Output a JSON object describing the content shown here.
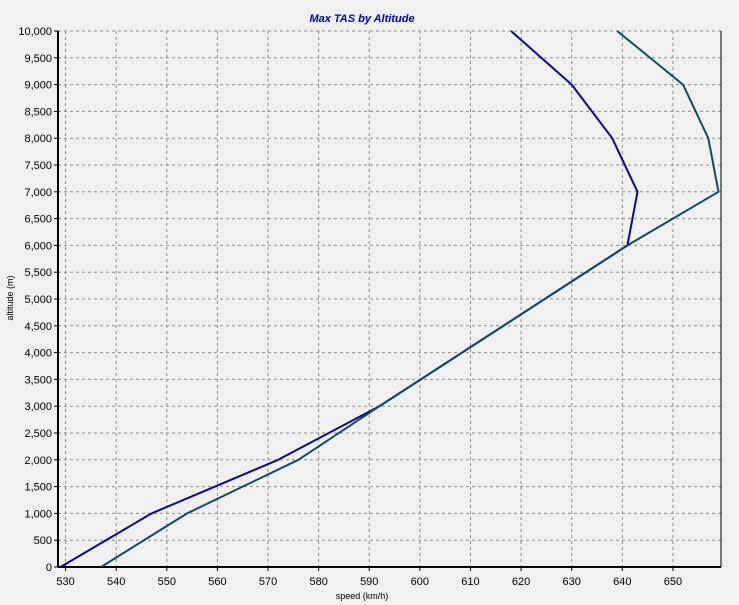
{
  "chart_data": {
    "type": "line",
    "title": "Max TAS by Altitude",
    "title_color": "#0000cc",
    "xlabel": "speed (km/h)",
    "ylabel": "altitude (m)",
    "xlim": [
      528.5,
      659.5
    ],
    "ylim": [
      0,
      10000
    ],
    "x_ticks": [
      530,
      540,
      550,
      560,
      570,
      580,
      590,
      600,
      610,
      620,
      630,
      640,
      650
    ],
    "y_ticks": [
      0,
      500,
      1000,
      1500,
      2000,
      2500,
      3000,
      3500,
      4000,
      4500,
      5000,
      5500,
      6000,
      6500,
      7000,
      7500,
      8000,
      8500,
      9000,
      9500,
      10000
    ],
    "y_tick_labels": [
      "0",
      "500",
      "1,000",
      "1,500",
      "2,000",
      "2,500",
      "3,000",
      "3,500",
      "4,000",
      "4,500",
      "5,000",
      "5,500",
      "6,000",
      "6,500",
      "7,000",
      "7,500",
      "8,000",
      "8,500",
      "9,000",
      "9,500",
      "10,000"
    ],
    "grid": true,
    "background_color": "#f0f0f0",
    "series": [
      {
        "color": "#0a0a96",
        "points": [
          [
            529,
            0
          ],
          [
            547,
            1000
          ],
          [
            572,
            2000
          ],
          [
            592,
            3000
          ],
          [
            641,
            6000
          ],
          [
            643,
            7000
          ],
          [
            638,
            8000
          ],
          [
            630,
            9000
          ],
          [
            618,
            10000
          ]
        ]
      },
      {
        "color": "#0b4d63",
        "points": [
          [
            537,
            0
          ],
          [
            554,
            1000
          ],
          [
            576,
            2000
          ],
          [
            592,
            3000
          ],
          [
            641,
            6000
          ],
          [
            659,
            7000
          ],
          [
            657,
            8000
          ],
          [
            652,
            9000
          ],
          [
            639,
            10000
          ]
        ]
      }
    ]
  }
}
